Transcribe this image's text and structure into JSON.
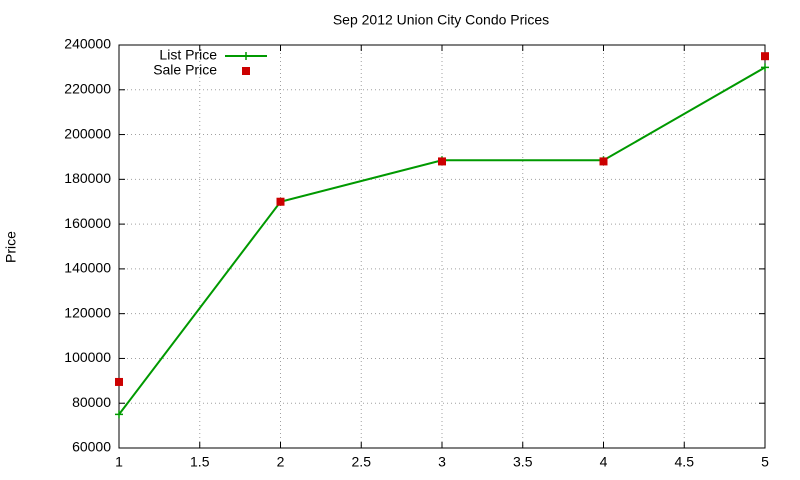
{
  "chart_data": {
    "type": "line",
    "title": "Sep 2012 Union City Condo Prices",
    "y_label": "Price",
    "x": [
      1,
      2,
      3,
      4,
      5
    ],
    "series": [
      {
        "name": "List Price",
        "color": "#009900",
        "marker": "plus",
        "line": true,
        "values": [
          75000,
          170000,
          188500,
          188500,
          230000
        ]
      },
      {
        "name": "Sale Price",
        "color": "#cc0000",
        "marker": "square",
        "line": false,
        "values": [
          89500,
          170000,
          188000,
          188000,
          235000
        ]
      }
    ],
    "xlim": [
      1,
      5
    ],
    "xticks": [
      1,
      1.5,
      2,
      2.5,
      3,
      3.5,
      4,
      4.5,
      5
    ],
    "ylim": [
      60000,
      240000
    ],
    "yticks": [
      60000,
      80000,
      100000,
      120000,
      140000,
      160000,
      180000,
      200000,
      220000,
      240000
    ],
    "grid": true,
    "legend": "top-left"
  }
}
